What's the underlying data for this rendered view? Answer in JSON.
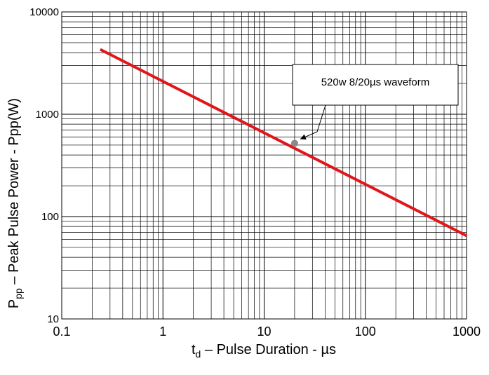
{
  "chart_data": {
    "type": "line",
    "title": "",
    "xlabel": {
      "main": "t",
      "sub": "d",
      "rest": "Pulse Duration  - µs"
    },
    "ylabel": {
      "main": "P",
      "sub": "pp",
      "rest": "Peak Pulse Power - Ppp(W)"
    },
    "xscale": "log",
    "yscale": "log",
    "xlim": [
      0.1,
      1000
    ],
    "ylim": [
      10,
      10000
    ],
    "xticks": [
      {
        "value": 0.1,
        "label": "0.1"
      },
      {
        "value": 1,
        "label": "1"
      },
      {
        "value": 10,
        "label": "10"
      },
      {
        "value": 100,
        "label": "100"
      },
      {
        "value": 1000,
        "label": "1000"
      }
    ],
    "yticks": [
      {
        "value": 10,
        "label": "10"
      },
      {
        "value": 100,
        "label": "100"
      },
      {
        "value": 1000,
        "label": "1000"
      },
      {
        "value": 10000,
        "label": "10000"
      }
    ],
    "grid": true,
    "series": [
      {
        "color": "#e0161b",
        "x": [
          0.24,
          1000
        ],
        "y": [
          4300,
          65
        ]
      }
    ],
    "marker": {
      "x": 20,
      "y": 520,
      "color": "#8a8a8a"
    },
    "annotation": {
      "text": "520w 8/20µs waveform"
    }
  }
}
